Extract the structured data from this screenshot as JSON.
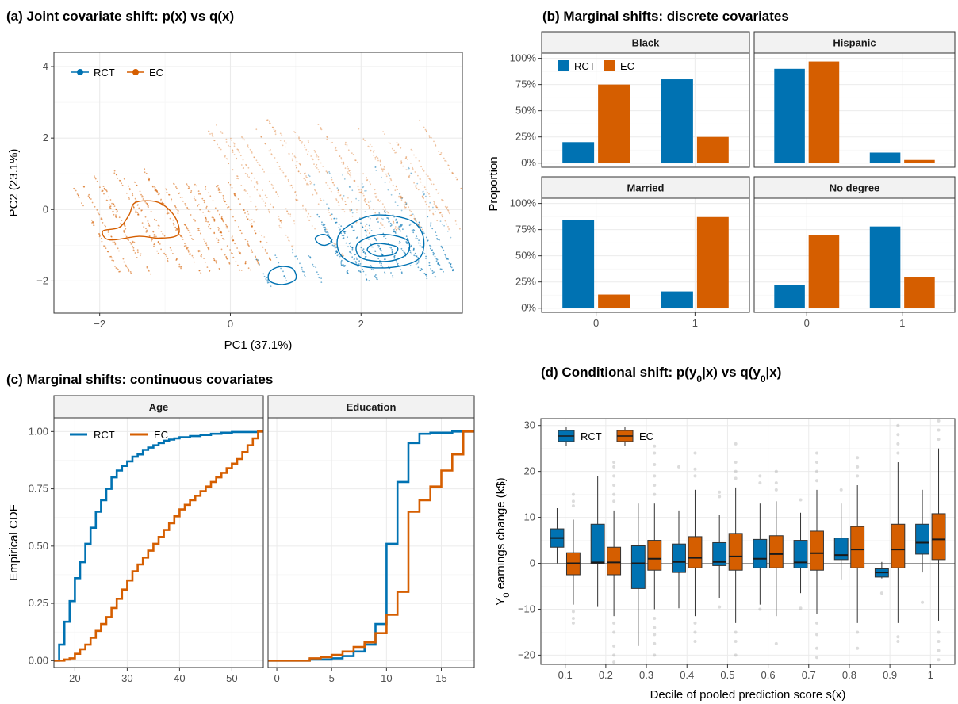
{
  "colors": {
    "rct": "#0072B2",
    "ec": "#D55E00",
    "grid": "#EBEBEB",
    "strip": "#F2F2F2",
    "axis": "#333333"
  },
  "chart_data": [
    {
      "id": "a",
      "type": "scatter",
      "title": "(a) Joint covariate shift: p(x) vs q(x)",
      "xlabel": "PC1 (37.1%)",
      "ylabel": "PC2 (23.1%)",
      "xlim": [
        -2.7,
        3.55
      ],
      "ylim": [
        -2.9,
        4.4
      ],
      "xticks": [
        -2,
        0,
        2
      ],
      "yticks": [
        -2,
        0,
        2,
        4
      ],
      "xtick_labels": [
        "−2",
        "0",
        "2"
      ],
      "ytick_labels": [
        "−2",
        "0",
        "2",
        "4"
      ],
      "legend": {
        "position": "top-left",
        "entries": [
          "RCT",
          "EC"
        ]
      },
      "series": [
        {
          "name": "RCT",
          "contours": [
            [
              [
                2.25,
                -0.15
              ],
              [
                2.75,
                -0.3
              ],
              [
                2.95,
                -0.75
              ],
              [
                2.9,
                -1.35
              ],
              [
                2.55,
                -1.6
              ],
              [
                2.05,
                -1.6
              ],
              [
                1.7,
                -1.3
              ],
              [
                1.65,
                -0.75
              ],
              [
                1.9,
                -0.35
              ]
            ],
            [
              [
                2.3,
                -0.7
              ],
              [
                2.7,
                -0.85
              ],
              [
                2.7,
                -1.25
              ],
              [
                2.4,
                -1.45
              ],
              [
                2.0,
                -1.35
              ],
              [
                1.95,
                -0.95
              ]
            ],
            [
              [
                2.3,
                -0.95
              ],
              [
                2.55,
                -1.05
              ],
              [
                2.5,
                -1.25
              ],
              [
                2.25,
                -1.3
              ],
              [
                2.1,
                -1.15
              ],
              [
                2.15,
                -1.0
              ]
            ],
            [
              [
                0.75,
                -1.6
              ],
              [
                0.95,
                -1.65
              ],
              [
                1.0,
                -1.95
              ],
              [
                0.8,
                -2.1
              ],
              [
                0.6,
                -2.0
              ],
              [
                0.6,
                -1.75
              ]
            ],
            [
              [
                1.4,
                -0.7
              ],
              [
                1.5,
                -0.75
              ],
              [
                1.55,
                -0.9
              ],
              [
                1.45,
                -1.0
              ],
              [
                1.35,
                -0.95
              ],
              [
                1.3,
                -0.8
              ]
            ]
          ]
        },
        {
          "name": "EC",
          "contours": [
            [
              [
                -1.45,
                0.2
              ],
              [
                -1.1,
                0.2
              ],
              [
                -0.85,
                -0.2
              ],
              [
                -0.8,
                -0.7
              ],
              [
                -1.1,
                -0.8
              ],
              [
                -1.4,
                -0.75
              ],
              [
                -1.85,
                -0.85
              ],
              [
                -1.95,
                -0.6
              ],
              [
                -1.7,
                -0.5
              ],
              [
                -1.55,
                -0.15
              ]
            ]
          ]
        }
      ]
    },
    {
      "id": "b",
      "type": "bar",
      "title": "(b) Marginal shifts: discrete covariates",
      "ylabel": "Proportion",
      "categories": [
        "0",
        "1"
      ],
      "ylim": [
        0,
        1.05
      ],
      "yticks": [
        0,
        0.25,
        0.5,
        0.75,
        1.0
      ],
      "ytick_labels": [
        "0%",
        "25%",
        "50%",
        "75%",
        "100%"
      ],
      "legend": {
        "position": "top-left",
        "entries": [
          "RCT",
          "EC"
        ]
      },
      "panels": [
        {
          "name": "Black",
          "series": [
            {
              "name": "RCT",
              "values": [
                0.2,
                0.8
              ]
            },
            {
              "name": "EC",
              "values": [
                0.75,
                0.25
              ]
            }
          ]
        },
        {
          "name": "Hispanic",
          "series": [
            {
              "name": "RCT",
              "values": [
                0.9,
                0.1
              ]
            },
            {
              "name": "EC",
              "values": [
                0.97,
                0.03
              ]
            }
          ]
        },
        {
          "name": "Married",
          "series": [
            {
              "name": "RCT",
              "values": [
                0.84,
                0.16
              ]
            },
            {
              "name": "EC",
              "values": [
                0.13,
                0.87
              ]
            }
          ]
        },
        {
          "name": "No degree",
          "series": [
            {
              "name": "RCT",
              "values": [
                0.22,
                0.78
              ]
            },
            {
              "name": "EC",
              "values": [
                0.7,
                0.3
              ]
            }
          ]
        }
      ]
    },
    {
      "id": "c",
      "type": "line",
      "step": true,
      "title": "(c) Marginal shifts: continuous covariates",
      "ylabel": "Empirical CDF",
      "ylim": [
        -0.03,
        1.06
      ],
      "yticks": [
        0,
        0.25,
        0.5,
        0.75,
        1.0
      ],
      "ytick_labels": [
        "0.00",
        "0.25",
        "0.50",
        "0.75",
        "1.00"
      ],
      "legend": {
        "position": "top-left",
        "entries": [
          "RCT",
          "EC"
        ]
      },
      "panels": [
        {
          "name": "Age",
          "xlim": [
            16,
            56
          ],
          "xticks": [
            20,
            30,
            40,
            50
          ],
          "series": [
            {
              "name": "RCT",
              "x": [
                17,
                18,
                19,
                20,
                21,
                22,
                23,
                24,
                25,
                26,
                27,
                28,
                29,
                30,
                31,
                32,
                33,
                34,
                35,
                36,
                37,
                38,
                39,
                40,
                42,
                44,
                46,
                48,
                50,
                55
              ],
              "y": [
                0.07,
                0.17,
                0.26,
                0.36,
                0.43,
                0.51,
                0.58,
                0.65,
                0.7,
                0.75,
                0.8,
                0.83,
                0.85,
                0.87,
                0.89,
                0.9,
                0.92,
                0.93,
                0.94,
                0.95,
                0.96,
                0.965,
                0.97,
                0.975,
                0.98,
                0.985,
                0.99,
                0.995,
                0.998,
                1.0
              ]
            },
            {
              "name": "EC",
              "x": [
                17,
                18,
                19,
                20,
                21,
                22,
                23,
                24,
                25,
                26,
                27,
                28,
                29,
                30,
                31,
                32,
                33,
                34,
                35,
                36,
                37,
                38,
                39,
                40,
                41,
                42,
                43,
                44,
                45,
                46,
                47,
                48,
                49,
                50,
                51,
                52,
                53,
                54,
                55
              ],
              "y": [
                0.0,
                0.005,
                0.01,
                0.03,
                0.05,
                0.07,
                0.1,
                0.13,
                0.16,
                0.19,
                0.23,
                0.27,
                0.31,
                0.35,
                0.39,
                0.42,
                0.45,
                0.48,
                0.51,
                0.54,
                0.57,
                0.6,
                0.63,
                0.66,
                0.68,
                0.7,
                0.72,
                0.74,
                0.76,
                0.78,
                0.8,
                0.82,
                0.84,
                0.86,
                0.88,
                0.91,
                0.94,
                0.97,
                1.0
              ]
            }
          ]
        },
        {
          "name": "Education",
          "xlim": [
            -0.8,
            18
          ],
          "xticks": [
            0,
            5,
            10,
            15
          ],
          "series": [
            {
              "name": "RCT",
              "x": [
                -0.8,
                3,
                5,
                6,
                7,
                8,
                9,
                10,
                11,
                12,
                13,
                14,
                16,
                18
              ],
              "y": [
                0.0,
                0.005,
                0.01,
                0.02,
                0.04,
                0.07,
                0.16,
                0.51,
                0.78,
                0.95,
                0.99,
                0.995,
                1.0,
                1.0
              ]
            },
            {
              "name": "EC",
              "x": [
                -0.8,
                3,
                4,
                5,
                6,
                7,
                8,
                9,
                10,
                11,
                12,
                13,
                14,
                15,
                16,
                17,
                18
              ],
              "y": [
                0.0,
                0.01,
                0.015,
                0.025,
                0.04,
                0.06,
                0.08,
                0.12,
                0.2,
                0.3,
                0.65,
                0.7,
                0.76,
                0.83,
                0.9,
                1.0,
                1.0
              ]
            }
          ]
        }
      ]
    },
    {
      "id": "d",
      "type": "box",
      "title": "(d) Conditional shift: p(y",
      "title_sub": "0",
      "title_end": "|x) vs q(y",
      "title_end2": "|x)",
      "xlabel": "Decile of pooled prediction score s(x)",
      "ylabel_main": "Y",
      "ylabel_sub": "0",
      "ylabel_rest": " earnings change (k$)",
      "categories": [
        "0.1",
        "0.2",
        "0.3",
        "0.4",
        "0.5",
        "0.6",
        "0.7",
        "0.8",
        "0.9",
        "1"
      ],
      "ylim": [
        -22,
        31.5
      ],
      "yticks": [
        -20,
        -10,
        0,
        10,
        20,
        30
      ],
      "ytick_labels": [
        "−20",
        "−10",
        "0",
        "10",
        "20",
        "30"
      ],
      "legend": {
        "position": "top-left",
        "entries": [
          "RCT",
          "EC"
        ]
      },
      "series": [
        {
          "name": "RCT",
          "boxes": [
            {
              "q1": 3.5,
              "med": 5.5,
              "q3": 7.5,
              "lo": 0.0,
              "hi": 12.0,
              "out": []
            },
            {
              "q1": 0.0,
              "med": 0.2,
              "q3": 8.5,
              "lo": -9.5,
              "hi": 19.0,
              "out": []
            },
            {
              "q1": -5.5,
              "med": 0.0,
              "q3": 3.8,
              "lo": -18.0,
              "hi": 13.0,
              "out": []
            },
            {
              "q1": -2.0,
              "med": 0.3,
              "q3": 4.2,
              "lo": -9.8,
              "hi": 11.5,
              "out": [
                21.0
              ]
            },
            {
              "q1": -0.5,
              "med": 0.3,
              "q3": 4.5,
              "lo": -7.5,
              "hi": 10.5,
              "out": [
                -9.5,
                14.5,
                15.5
              ]
            },
            {
              "q1": -1.0,
              "med": 1.0,
              "q3": 5.2,
              "lo": -9.0,
              "hi": 13.0,
              "out": [
                -10.0,
                17.5,
                19.0
              ]
            },
            {
              "q1": -1.0,
              "med": 0.2,
              "q3": 5.0,
              "lo": -6.5,
              "hi": 11.0,
              "out": [
                -9.8,
                13.8
              ]
            },
            {
              "q1": 0.8,
              "med": 1.8,
              "q3": 5.5,
              "lo": -3.5,
              "hi": 13.0,
              "out": [
                16.0
              ]
            },
            {
              "q1": -3.0,
              "med": -2.0,
              "q3": -1.2,
              "lo": -3.3,
              "hi": 0.3,
              "out": [
                -6.5
              ]
            },
            {
              "q1": 2.0,
              "med": 4.5,
              "q3": 8.5,
              "lo": -2.0,
              "hi": 16.0,
              "out": [
                -8.5
              ]
            }
          ]
        },
        {
          "name": "EC",
          "boxes": [
            {
              "q1": -2.5,
              "med": 0.0,
              "q3": 2.3,
              "lo": -9.0,
              "hi": 9.5,
              "out": [
                -10.5,
                -12.0,
                -13.0,
                12.5,
                13.5,
                15.0
              ]
            },
            {
              "q1": -2.5,
              "med": 0.2,
              "q3": 3.5,
              "lo": -11.5,
              "hi": 11.5,
              "out": [
                -13.0,
                -15.0,
                -18.0,
                -20.0,
                -21.5,
                13.5,
                15.0,
                17.0,
                19.0,
                21.0,
                22.0
              ]
            },
            {
              "q1": -1.5,
              "med": 1.0,
              "q3": 5.0,
              "lo": -10.0,
              "hi": 13.0,
              "out": [
                -12.0,
                -14.0,
                -15.5,
                -17.5,
                -20.0,
                15.0,
                17.0,
                19.0,
                21.5,
                24.0,
                25.5
              ]
            },
            {
              "q1": -1.0,
              "med": 1.2,
              "q3": 5.8,
              "lo": -11.5,
              "hi": 16.0,
              "out": [
                -13.0,
                -15.0,
                -17.0,
                19.0,
                20.5,
                24.0
              ]
            },
            {
              "q1": -1.5,
              "med": 1.5,
              "q3": 6.5,
              "lo": -13.0,
              "hi": 16.5,
              "out": [
                -15.0,
                -17.0,
                -20.0,
                18.5,
                20.0,
                22.0,
                26.0
              ]
            },
            {
              "q1": -1.0,
              "med": 2.0,
              "q3": 6.0,
              "lo": -11.5,
              "hi": 13.5,
              "out": [
                -17.5,
                16.0,
                17.5,
                20.0
              ]
            },
            {
              "q1": -1.5,
              "med": 2.2,
              "q3": 7.0,
              "lo": -11.0,
              "hi": 16.0,
              "out": [
                -13.0,
                -15.5,
                -18.5,
                -20.5,
                18.0,
                20.0,
                22.0,
                24.0
              ]
            },
            {
              "q1": -1.0,
              "med": 3.0,
              "q3": 8.0,
              "lo": -13.0,
              "hi": 17.0,
              "out": [
                -15.0,
                -18.5,
                19.0,
                21.0,
                23.0
              ]
            },
            {
              "q1": -1.0,
              "med": 3.0,
              "q3": 8.5,
              "lo": -13.0,
              "hi": 22.0,
              "out": [
                -16.0,
                -17.0,
                24.0,
                26.0,
                28.0,
                30.0
              ]
            },
            {
              "q1": 0.8,
              "med": 5.2,
              "q3": 10.8,
              "lo": -12.5,
              "hi": 25.0,
              "out": [
                -15.0,
                -17.0,
                -19.0,
                -21.0,
                27.0,
                29.0,
                31.0
              ]
            }
          ]
        }
      ]
    }
  ]
}
